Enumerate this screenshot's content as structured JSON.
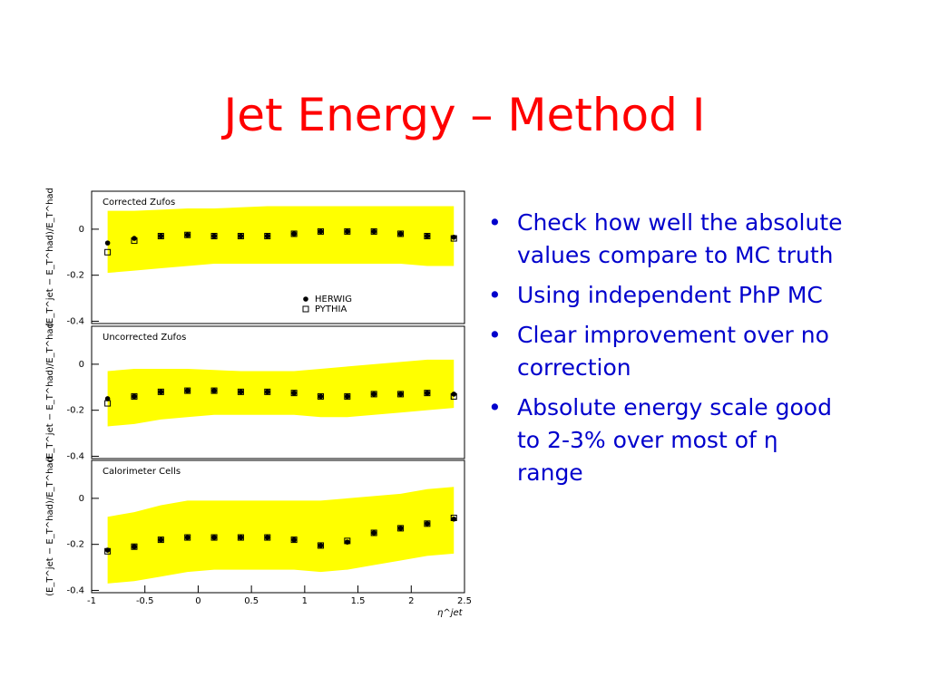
{
  "title": "Jet Energy – Method I",
  "bullets": [
    "Check how well the absolute values compare to MC truth",
    "Using independent PhP MC",
    "Clear improvement over no correction",
    "Absolute energy scale good to 2-3% over most of η range"
  ],
  "chart_data": [
    {
      "type": "scatter",
      "title": "Corrected Zufos",
      "ylabel": "(E_T^jet − E_T^had)/E_T^had",
      "x": [
        -0.85,
        -0.6,
        -0.35,
        -0.1,
        0.15,
        0.4,
        0.65,
        0.9,
        1.15,
        1.4,
        1.65,
        1.9,
        2.15,
        2.4
      ],
      "xlim": [
        -1,
        2.5
      ],
      "ylim": [
        -0.41,
        0.165
      ],
      "yticks": [
        0,
        -0.2,
        -0.4
      ],
      "band": {
        "color": "#ffff00",
        "upper": [
          0.08,
          0.08,
          0.085,
          0.09,
          0.09,
          0.095,
          0.1,
          0.1,
          0.1,
          0.1,
          0.1,
          0.1,
          0.1,
          0.1
        ],
        "lower": [
          -0.19,
          -0.18,
          -0.17,
          -0.16,
          -0.15,
          -0.15,
          -0.15,
          -0.15,
          -0.15,
          -0.15,
          -0.15,
          -0.15,
          -0.16,
          -0.16
        ]
      },
      "series": [
        {
          "name": "HERWIG",
          "color": "#000000",
          "marker": "circle",
          "values": [
            -0.06,
            -0.04,
            -0.03,
            -0.025,
            -0.03,
            -0.03,
            -0.03,
            -0.02,
            -0.01,
            -0.01,
            -0.01,
            -0.02,
            -0.03,
            -0.035
          ]
        },
        {
          "name": "PYTHIA",
          "color": "#000000",
          "marker": "square",
          "values": [
            -0.1,
            -0.05,
            -0.03,
            -0.025,
            -0.03,
            -0.03,
            -0.03,
            -0.02,
            -0.01,
            -0.01,
            -0.01,
            -0.02,
            -0.03,
            -0.04
          ]
        }
      ],
      "legend": "lower-right"
    },
    {
      "type": "scatter",
      "title": "Uncorrected Zufos",
      "ylabel": "(E_T^jet − E_T^had)/E_T^had",
      "x": [
        -0.85,
        -0.6,
        -0.35,
        -0.1,
        0.15,
        0.4,
        0.65,
        0.9,
        1.15,
        1.4,
        1.65,
        1.9,
        2.15,
        2.4
      ],
      "xlim": [
        -1,
        2.5
      ],
      "ylim": [
        -0.41,
        0.165
      ],
      "yticks": [
        0,
        -0.2,
        -0.4
      ],
      "band": {
        "color": "#ffff00",
        "upper": [
          -0.03,
          -0.02,
          -0.02,
          -0.02,
          -0.025,
          -0.03,
          -0.03,
          -0.03,
          -0.02,
          -0.01,
          0,
          0.01,
          0.02,
          0.02
        ],
        "lower": [
          -0.27,
          -0.26,
          -0.24,
          -0.23,
          -0.22,
          -0.22,
          -0.22,
          -0.22,
          -0.23,
          -0.23,
          -0.22,
          -0.21,
          -0.2,
          -0.19
        ]
      },
      "series": [
        {
          "name": "HERWIG",
          "color": "#000000",
          "marker": "circle",
          "values": [
            -0.15,
            -0.14,
            -0.12,
            -0.115,
            -0.115,
            -0.12,
            -0.12,
            -0.125,
            -0.14,
            -0.14,
            -0.13,
            -0.13,
            -0.125,
            -0.13
          ]
        },
        {
          "name": "PYTHIA",
          "color": "#000000",
          "marker": "square",
          "values": [
            -0.17,
            -0.14,
            -0.12,
            -0.115,
            -0.115,
            -0.12,
            -0.12,
            -0.125,
            -0.14,
            -0.14,
            -0.13,
            -0.13,
            -0.125,
            -0.14
          ]
        }
      ]
    },
    {
      "type": "scatter",
      "title": "Calorimeter Cells",
      "ylabel": "(E_T^jet − E_T^had)/E_T^had",
      "xlabel": "η^jet",
      "x": [
        -0.85,
        -0.6,
        -0.35,
        -0.1,
        0.15,
        0.4,
        0.65,
        0.9,
        1.15,
        1.4,
        1.65,
        1.9,
        2.15,
        2.4
      ],
      "xlim": [
        -1,
        2.5
      ],
      "ylim": [
        -0.41,
        0.165
      ],
      "yticks": [
        0,
        -0.2,
        -0.4
      ],
      "xticks": [
        -1,
        -0.5,
        0,
        0.5,
        1,
        1.5,
        2,
        2.5
      ],
      "band": {
        "color": "#ffff00",
        "upper": [
          -0.08,
          -0.06,
          -0.03,
          -0.01,
          -0.01,
          -0.01,
          -0.01,
          -0.01,
          -0.01,
          0,
          0.01,
          0.02,
          0.04,
          0.05
        ],
        "lower": [
          -0.37,
          -0.36,
          -0.34,
          -0.32,
          -0.31,
          -0.31,
          -0.31,
          -0.31,
          -0.32,
          -0.31,
          -0.29,
          -0.27,
          -0.25,
          -0.24
        ]
      },
      "series": [
        {
          "name": "HERWIG",
          "color": "#000000",
          "marker": "circle",
          "values": [
            -0.225,
            -0.21,
            -0.18,
            -0.17,
            -0.17,
            -0.17,
            -0.17,
            -0.18,
            -0.205,
            -0.19,
            -0.15,
            -0.13,
            -0.11,
            -0.09
          ]
        },
        {
          "name": "PYTHIA",
          "color": "#000000",
          "marker": "square",
          "values": [
            -0.23,
            -0.21,
            -0.18,
            -0.17,
            -0.17,
            -0.17,
            -0.17,
            -0.18,
            -0.205,
            -0.185,
            -0.15,
            -0.13,
            -0.11,
            -0.085
          ]
        }
      ]
    }
  ]
}
